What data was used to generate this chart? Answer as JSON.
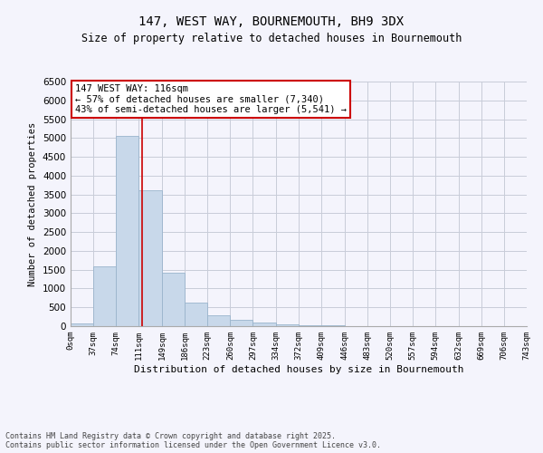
{
  "title_line1": "147, WEST WAY, BOURNEMOUTH, BH9 3DX",
  "title_line2": "Size of property relative to detached houses in Bournemouth",
  "xlabel": "Distribution of detached houses by size in Bournemouth",
  "ylabel": "Number of detached properties",
  "bin_edges": [
    0,
    37,
    74,
    111,
    149,
    186,
    223,
    260,
    297,
    334,
    372,
    409,
    446,
    483,
    520,
    557,
    594,
    632,
    669,
    706,
    743
  ],
  "bar_heights": [
    70,
    1600,
    5050,
    3600,
    1430,
    620,
    280,
    165,
    100,
    50,
    25,
    15,
    8,
    4,
    2,
    1,
    1,
    0,
    0,
    0
  ],
  "bar_color": "#c8d8ea",
  "bar_edge_color": "#9ab4cc",
  "grid_color": "#c8ccd8",
  "background_color": "#f4f4fc",
  "vline_x": 116,
  "vline_color": "#cc0000",
  "ylim": [
    0,
    6500
  ],
  "yticks": [
    0,
    500,
    1000,
    1500,
    2000,
    2500,
    3000,
    3500,
    4000,
    4500,
    5000,
    5500,
    6000,
    6500
  ],
  "annotation_title": "147 WEST WAY: 116sqm",
  "annotation_line2": "← 57% of detached houses are smaller (7,340)",
  "annotation_line3": "43% of semi-detached houses are larger (5,541) →",
  "annotation_box_color": "#ffffff",
  "annotation_border_color": "#cc0000",
  "footer_line1": "Contains HM Land Registry data © Crown copyright and database right 2025.",
  "footer_line2": "Contains public sector information licensed under the Open Government Licence v3.0.",
  "tick_labels": [
    "0sqm",
    "37sqm",
    "74sqm",
    "111sqm",
    "149sqm",
    "186sqm",
    "223sqm",
    "260sqm",
    "297sqm",
    "334sqm",
    "372sqm",
    "409sqm",
    "446sqm",
    "483sqm",
    "520sqm",
    "557sqm",
    "594sqm",
    "632sqm",
    "669sqm",
    "706sqm",
    "743sqm"
  ]
}
